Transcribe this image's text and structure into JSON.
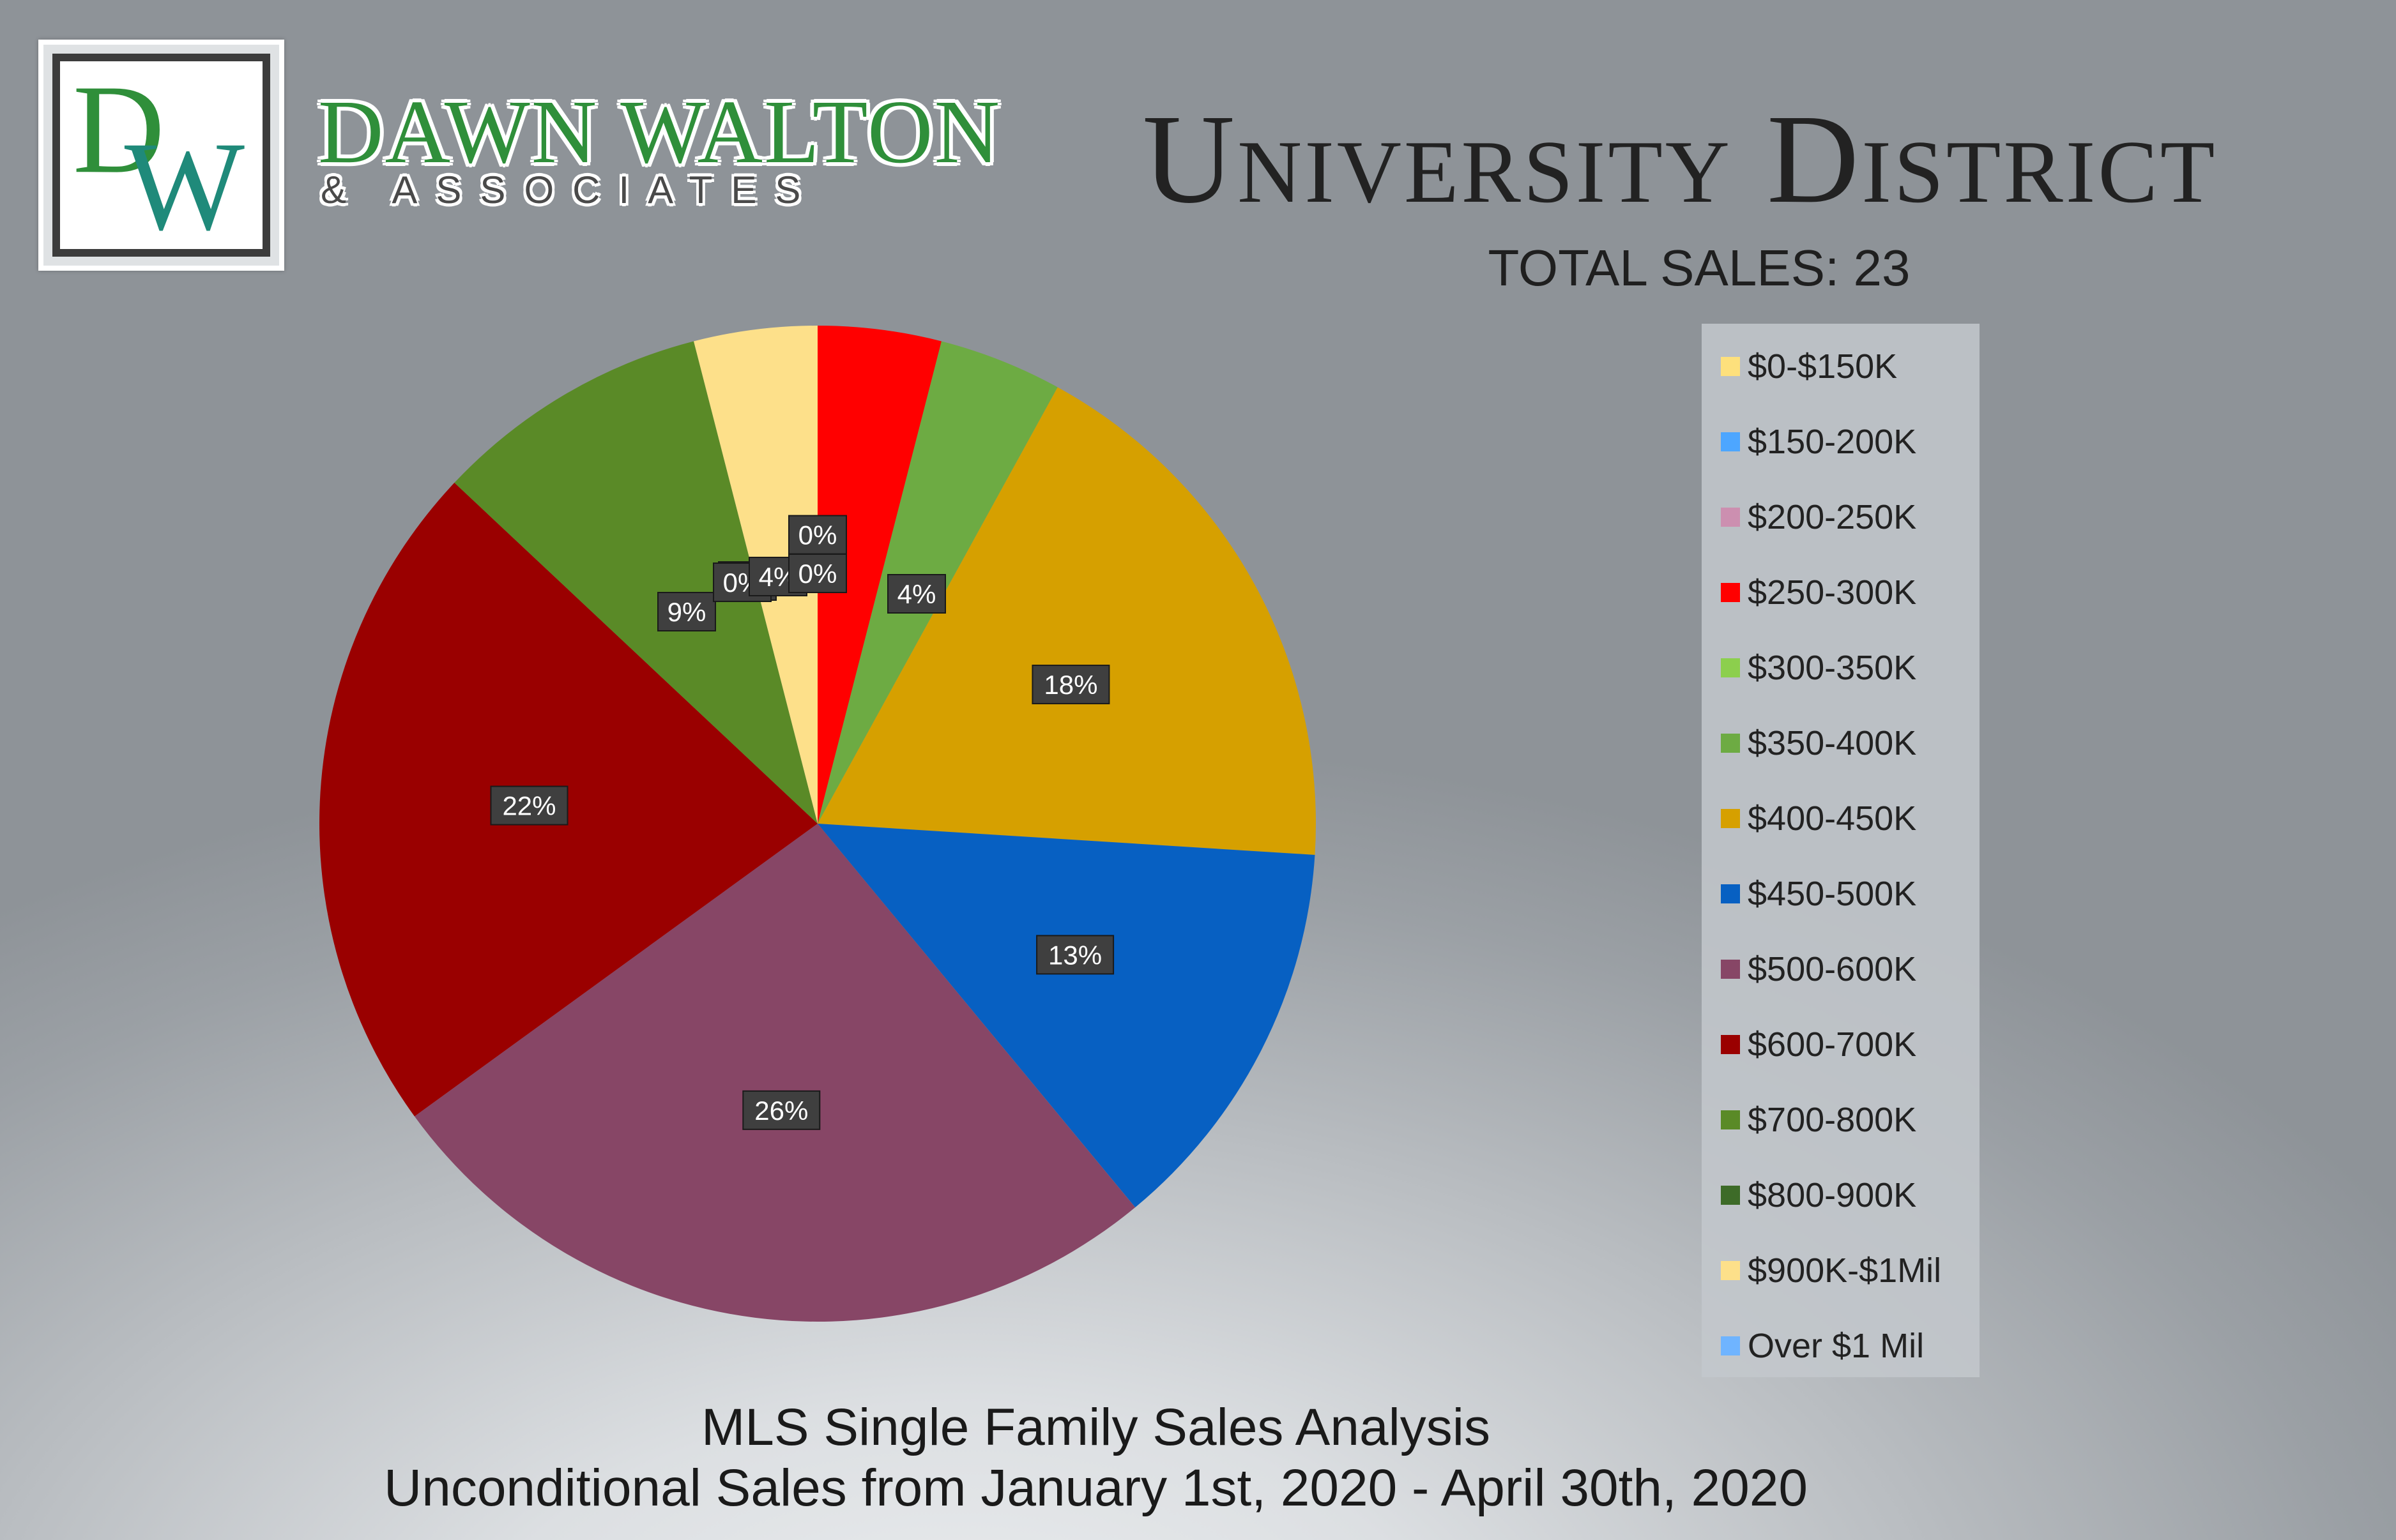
{
  "brand": {
    "logo_letters": "DW",
    "name": "DAWN WALTON",
    "subtitle": "& ASSOCIATES",
    "colors": {
      "green": "#2f8f3a",
      "teal": "#1f8a7a",
      "dark": "#3c3c3c"
    }
  },
  "header": {
    "title": "University District",
    "total_sales": "TOTAL SALES: 23"
  },
  "footer": {
    "line1": "MLS Single Family Sales Analysis",
    "line2": "Unconditional Sales from January 1st, 2020 - April 30th, 2020"
  },
  "chart_data": {
    "type": "pie",
    "title": "University District",
    "subtitle": "TOTAL SALES: 23",
    "legend_position": "right",
    "slices": [
      {
        "label": "$0-$150K",
        "value": 0,
        "percent_label": "",
        "color": "#fde07c"
      },
      {
        "label": "$150-200K",
        "value": 0,
        "percent_label": "",
        "color": "#4da6ff"
      },
      {
        "label": "$200-250K",
        "value": 0,
        "percent_label": "",
        "color": "#cc8fb0"
      },
      {
        "label": "$250-300K",
        "value": 4,
        "percent_label": "",
        "color": "#ff0000"
      },
      {
        "label": "$300-350K",
        "value": 0,
        "percent_label": "0%",
        "color": "#8ccf4d"
      },
      {
        "label": "$350-400K",
        "value": 4,
        "percent_label": "4%",
        "color": "#6dab43"
      },
      {
        "label": "$400-450K",
        "value": 18,
        "percent_label": "18%",
        "color": "#d6a000"
      },
      {
        "label": "$450-500K",
        "value": 13,
        "percent_label": "13%",
        "color": "#0760c2"
      },
      {
        "label": "$500-600K",
        "value": 26,
        "percent_label": "26%",
        "color": "#874666"
      },
      {
        "label": "$600-700K",
        "value": 22,
        "percent_label": "22%",
        "color": "#9a0000"
      },
      {
        "label": "$700-800K",
        "value": 9,
        "percent_label": "9%",
        "color": "#5a8a27"
      },
      {
        "label": "$800-900K",
        "value": 0,
        "percent_label": "0%",
        "color": "#3d6b28"
      },
      {
        "label": "$900K-$1Mil",
        "value": 4,
        "percent_label": "4%",
        "color": "#fde08a"
      },
      {
        "label": "Over $1 Mil",
        "value": 0,
        "percent_label": "0%",
        "color": "#6fb4ff"
      }
    ],
    "center_label": "0%"
  }
}
